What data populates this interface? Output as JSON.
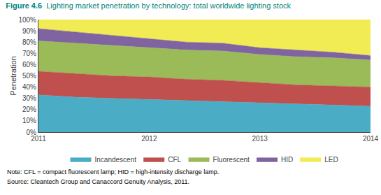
{
  "chart_data": {
    "type": "area",
    "title": "Figure 4.6",
    "subtitle": "Lighting market penetration by technology: total worldwide lighting stock",
    "title_color": "#00847a",
    "ylabel": "Penetration",
    "annotations": [
      "Note: CFL = compact fluorescent lamp; HID = high-intensity discharge lamp.",
      "Source: Cleantech Group and Canaccord Genuity Analysis, 2011."
    ],
    "x": [
      2011,
      2011.333,
      2011.667,
      2012,
      2012.333,
      2012.667,
      2013,
      2013.333,
      2013.667,
      2014
    ],
    "series": [
      {
        "name": "Incandescent",
        "color": "#4bacc6",
        "values": [
          33,
          31,
          30,
          29,
          28,
          27,
          26,
          25,
          24,
          23
        ]
      },
      {
        "name": "CFL",
        "color": "#c0504d",
        "values": [
          21,
          21,
          20,
          20,
          19,
          19,
          18,
          17,
          17,
          17
        ]
      },
      {
        "name": "Fluorescent",
        "color": "#9bbb59",
        "values": [
          27,
          27,
          27,
          26,
          26,
          26,
          25,
          25,
          25,
          24
        ]
      },
      {
        "name": "HID",
        "color": "#8064a2",
        "values": [
          11,
          10,
          9,
          8,
          7,
          7,
          6,
          6,
          5,
          4
        ]
      },
      {
        "name": "LED",
        "color": "#f2ec54",
        "values": [
          8,
          11,
          14,
          17,
          20,
          21,
          25,
          27,
          29,
          32
        ]
      }
    ],
    "stacked": true,
    "xlim": [
      2011,
      2014
    ],
    "xticks": [
      2011,
      2012,
      2013,
      2014
    ],
    "ylim": [
      0,
      100
    ],
    "yticks": [
      {
        "value": 0,
        "label": "0%"
      },
      {
        "value": 10,
        "label": "10%"
      },
      {
        "value": 20,
        "label": "20%"
      },
      {
        "value": 30,
        "label": "30%"
      },
      {
        "value": 40,
        "label": "40%"
      },
      {
        "value": 50,
        "label": "50%"
      },
      {
        "value": 60,
        "label": "60%"
      },
      {
        "value": 70,
        "label": "70%"
      },
      {
        "value": 80,
        "label": "80%"
      },
      {
        "value": 90,
        "label": "90%"
      },
      {
        "value": 100,
        "label": "100%"
      }
    ],
    "grid": false,
    "legend": "bottom"
  }
}
